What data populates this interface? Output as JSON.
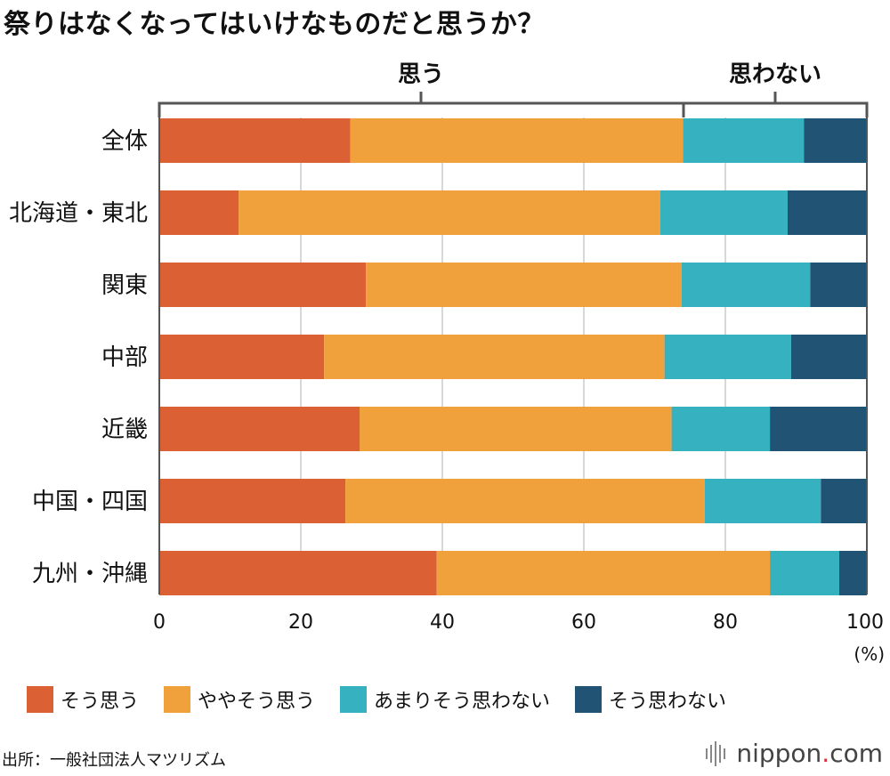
{
  "title": "祭りはなくなってはいけなものだと思うか？",
  "brackets": {
    "agree": "思う",
    "disagree": "思わない"
  },
  "colors": {
    "s1": "#db6034",
    "s2": "#f0a13c",
    "s3": "#35b1c0",
    "s4": "#215474",
    "grid": "#cccccc",
    "axis": "#555555"
  },
  "chart_data": {
    "type": "bar",
    "orientation": "horizontal",
    "stacked": true,
    "title": "祭りはなくなってはいけなものだと思うか？",
    "categories": [
      "全体",
      "北海道・東北",
      "関東",
      "中部",
      "近畿",
      "中国・四国",
      "九州・沖縄"
    ],
    "series": [
      {
        "name": "そう思う",
        "values": [
          27.0,
          11.2,
          29.2,
          23.3,
          28.3,
          26.3,
          39.2
        ]
      },
      {
        "name": "ややそう思う",
        "values": [
          47.0,
          59.6,
          44.6,
          48.1,
          44.1,
          50.8,
          47.1
        ]
      },
      {
        "name": "あまりそう思わない",
        "values": [
          17.1,
          18.0,
          18.2,
          17.9,
          13.9,
          16.4,
          9.8
        ]
      },
      {
        "name": "そう思わない",
        "values": [
          8.9,
          11.2,
          8.0,
          10.7,
          13.7,
          6.5,
          3.9
        ]
      }
    ],
    "xlim": [
      0,
      100
    ],
    "xticks": [
      "0",
      "20",
      "40",
      "60",
      "80",
      "100"
    ],
    "xunit": "(%)"
  },
  "source": "出所：一般社団法人マツリズム",
  "brand": {
    "name": "nippon",
    "dot": ".",
    "tld": "com"
  }
}
